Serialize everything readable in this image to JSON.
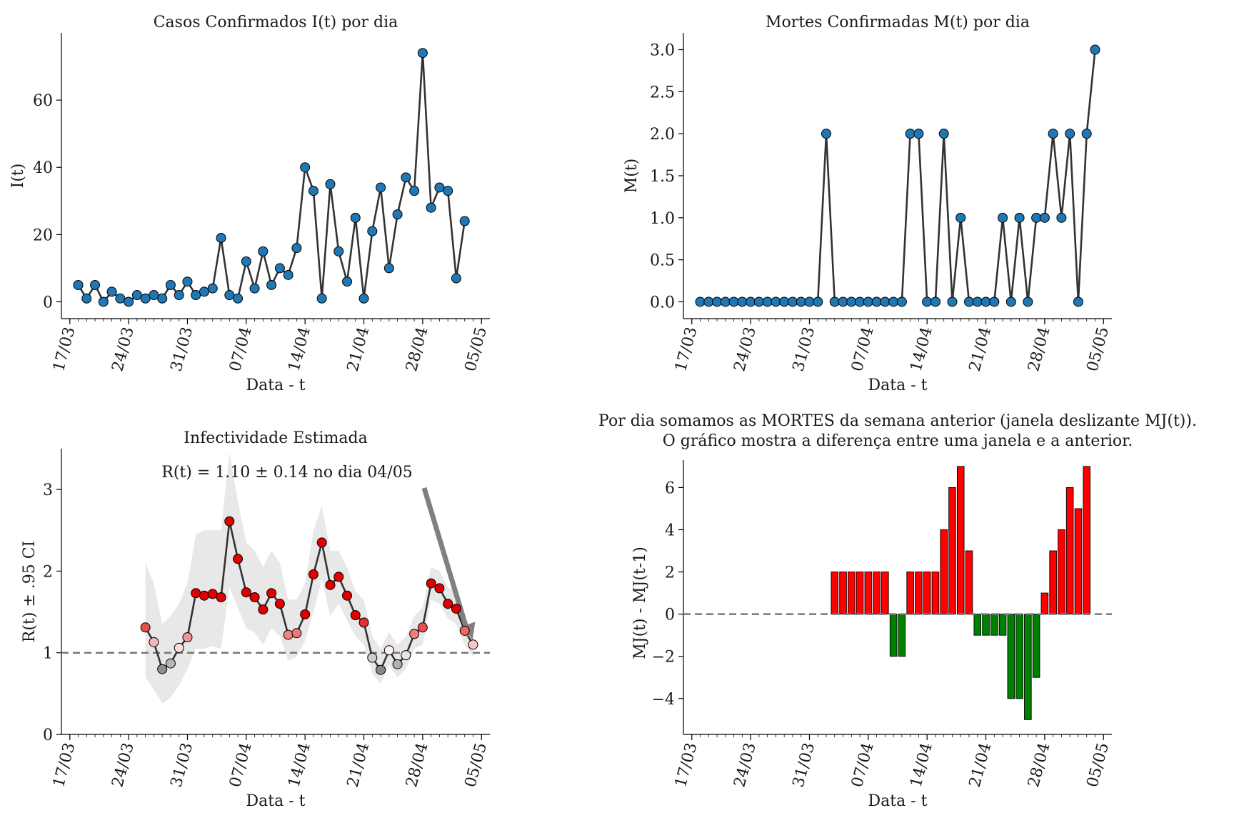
{
  "chart_data": [
    {
      "type": "line",
      "title": "Casos Confirmados I(t) por dia",
      "xlabel": "Data - t",
      "ylabel": "I(t)",
      "x_ticks": [
        "17/03",
        "24/03",
        "31/03",
        "07/04",
        "14/04",
        "21/04",
        "28/04",
        "05/05"
      ],
      "ylim": [
        -5,
        80
      ],
      "y_ticks": [
        0,
        20,
        40,
        60
      ],
      "x_start": "2020-03-18",
      "values": [
        5,
        1,
        5,
        0,
        3,
        1,
        0,
        2,
        1,
        2,
        1,
        5,
        2,
        6,
        2,
        3,
        4,
        19,
        2,
        1,
        12,
        4,
        15,
        5,
        10,
        8,
        16,
        40,
        33,
        1,
        35,
        15,
        6,
        25,
        1,
        21,
        34,
        10,
        26,
        37,
        33,
        74,
        28,
        34,
        33,
        7,
        24
      ],
      "point_color": "#1f77b4",
      "line_color": "#333333"
    },
    {
      "type": "line",
      "title": "Mortes Confirmadas M(t) por dia",
      "xlabel": "Data - t",
      "ylabel": "M(t)",
      "x_ticks": [
        "17/03",
        "24/03",
        "31/03",
        "07/04",
        "14/04",
        "21/04",
        "28/04",
        "05/05"
      ],
      "ylim": [
        -0.2,
        3.2
      ],
      "y_ticks": [
        "0.0",
        "0.5",
        "1.0",
        "1.5",
        "2.0",
        "2.5",
        "3.0"
      ],
      "x_start": "2020-03-18",
      "values": [
        0,
        0,
        0,
        0,
        0,
        0,
        0,
        0,
        0,
        0,
        0,
        0,
        0,
        0,
        0,
        2,
        0,
        0,
        0,
        0,
        0,
        0,
        0,
        0,
        0,
        2,
        2,
        0,
        0,
        2,
        0,
        1,
        0,
        0,
        0,
        0,
        1,
        0,
        1,
        0,
        1,
        1,
        2,
        1,
        2,
        0,
        2,
        3
      ],
      "point_color": "#1f77b4",
      "line_color": "#333333"
    },
    {
      "type": "line",
      "title": "Infectividade Estimada",
      "xlabel": "Data - t",
      "ylabel": "R(t) ± .95 CI",
      "annotation": "R(t) = 1.10 ± 0.14 no dia 04/05",
      "x_ticks": [
        "17/03",
        "24/03",
        "31/03",
        "07/04",
        "14/04",
        "21/04",
        "28/04",
        "05/05"
      ],
      "ylim": [
        0,
        3.5
      ],
      "y_ticks": [
        0,
        1,
        2,
        3
      ],
      "reference_line": 1,
      "x_start": "2020-03-26",
      "values": [
        1.31,
        1.13,
        0.8,
        0.87,
        1.06,
        1.19,
        1.73,
        1.7,
        1.72,
        1.68,
        2.61,
        2.15,
        1.74,
        1.68,
        1.53,
        1.73,
        1.6,
        1.22,
        1.24,
        1.47,
        1.96,
        2.35,
        1.83,
        1.93,
        1.7,
        1.46,
        1.37,
        0.94,
        0.79,
        1.03,
        0.86,
        0.97,
        1.23,
        1.31,
        1.85,
        1.79,
        1.6,
        1.54,
        1.27,
        1.1
      ],
      "ci_upper": [
        2.1,
        1.85,
        1.35,
        1.45,
        1.6,
        1.85,
        2.45,
        2.5,
        2.5,
        2.5,
        3.45,
        2.85,
        2.35,
        2.25,
        2.05,
        2.25,
        2.1,
        1.65,
        1.65,
        1.85,
        2.5,
        2.8,
        2.25,
        2.25,
        2.05,
        1.75,
        1.65,
        1.2,
        1.05,
        1.25,
        1.1,
        1.2,
        1.45,
        1.55,
        2.05,
        2.0,
        1.8,
        1.75,
        1.45,
        1.25
      ],
      "ci_lower": [
        0.7,
        0.55,
        0.38,
        0.45,
        0.6,
        0.8,
        1.05,
        1.05,
        1.08,
        1.05,
        1.8,
        1.55,
        1.3,
        1.25,
        1.1,
        1.3,
        1.2,
        0.9,
        0.95,
        1.15,
        1.5,
        1.9,
        1.45,
        1.6,
        1.4,
        1.2,
        1.1,
        0.75,
        0.62,
        0.85,
        0.7,
        0.8,
        1.05,
        1.1,
        1.65,
        1.6,
        1.42,
        1.35,
        1.1,
        0.95
      ],
      "line_color": "#333333",
      "ci_color": "#e8e8e8",
      "reference_color": "#777777"
    },
    {
      "type": "bar",
      "title": "Por dia somamos as MORTES da semana anterior (janela deslizante MJ(t)).\nO gráfico mostra a diferença entre uma janela e a anterior.",
      "xlabel": "Data - t",
      "ylabel": "MJ(t) - MJ(t-1)",
      "x_ticks": [
        "17/03",
        "24/03",
        "31/03",
        "07/04",
        "14/04",
        "21/04",
        "28/04",
        "05/05"
      ],
      "ylim": [
        -5.7,
        7.3
      ],
      "y_ticks": [
        -4,
        -2,
        0,
        2,
        4,
        6
      ],
      "reference_line": 0,
      "x_start": "2020-04-03",
      "values": [
        2,
        2,
        2,
        2,
        2,
        2,
        2,
        -2,
        -2,
        2,
        2,
        2,
        2,
        4,
        6,
        7,
        3,
        -1,
        -1,
        -1,
        -1,
        -4,
        -4,
        -5,
        -3,
        1,
        3,
        4,
        6,
        5,
        7
      ],
      "positive_color": "#ff0000",
      "negative_color": "#008000",
      "reference_color": "#777777"
    }
  ]
}
